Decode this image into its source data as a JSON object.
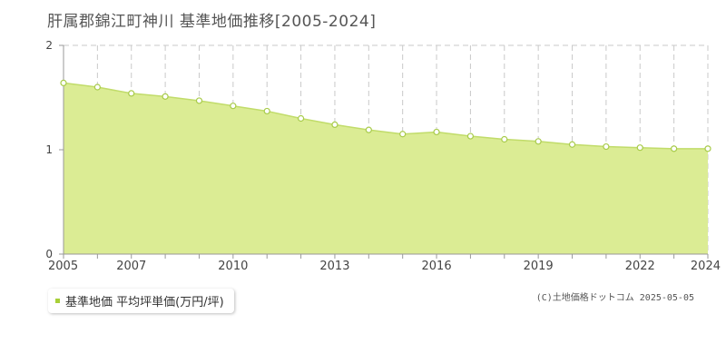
{
  "chart_data": {
    "type": "area",
    "title": "肝属郡錦江町神川 基準地価推移[2005-2024]",
    "x": [
      2005,
      2006,
      2007,
      2008,
      2009,
      2010,
      2011,
      2012,
      2013,
      2014,
      2015,
      2016,
      2017,
      2018,
      2019,
      2020,
      2021,
      2022,
      2023,
      2024
    ],
    "series": [
      {
        "name": "基準地価 平均坪単価(万円/坪)",
        "values": [
          1.64,
          1.6,
          1.54,
          1.51,
          1.47,
          1.42,
          1.37,
          1.3,
          1.24,
          1.19,
          1.15,
          1.17,
          1.13,
          1.1,
          1.08,
          1.05,
          1.03,
          1.02,
          1.01,
          1.01
        ]
      }
    ],
    "x_tick_labels": [
      "2005",
      "2007",
      "2010",
      "2013",
      "2016",
      "2019",
      "2022",
      "2024"
    ],
    "y_tick_labels": [
      "0",
      "1",
      "2"
    ],
    "ylim": [
      0,
      2
    ],
    "xlim": [
      2005,
      2024
    ],
    "grid": true,
    "legend_position": "bottom-left",
    "colors": {
      "fill": "#dbec94",
      "line": "#c1dc6a",
      "marker_fill": "#ffffff",
      "marker_stroke": "#a8cb4a",
      "legend_swatch": "#a8cf38"
    }
  },
  "legend": {
    "label": "基準地価 平均坪単価(万円/坪)"
  },
  "footer": {
    "copyright": "(C)土地価格ドットコム 2025-05-05"
  }
}
